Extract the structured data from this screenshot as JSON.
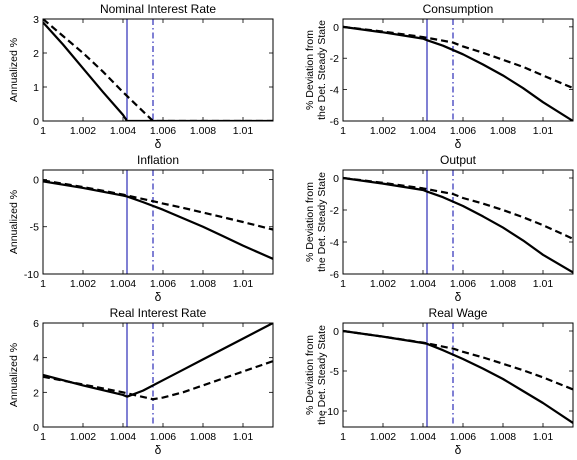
{
  "chart_data": [
    {
      "type": "line",
      "title": "Nominal Interest Rate",
      "xlabel": "δ",
      "ylabel": [
        "Annualized %"
      ],
      "xlim": [
        1,
        1.0115
      ],
      "ylim": [
        0,
        3
      ],
      "xticks": [
        "1",
        "1.002",
        "1.004",
        "1.006",
        "1.008",
        "1.01"
      ],
      "yticks": [
        "0",
        "1",
        "2",
        "3"
      ],
      "vlines": [
        {
          "x": 1.0042,
          "style": "solid",
          "color": "#0000aa"
        },
        {
          "x": 1.0055,
          "style": "dashdot",
          "color": "#0000aa"
        }
      ],
      "series": [
        {
          "style": "solid",
          "x": [
            1,
            1.001,
            1.002,
            1.003,
            1.004,
            1.0042,
            1.005,
            1.006,
            1.008,
            1.0115
          ],
          "y": [
            2.9,
            2.25,
            1.55,
            0.85,
            0.18,
            0,
            0,
            0,
            0,
            0
          ]
        },
        {
          "style": "dashed",
          "x": [
            1,
            1.001,
            1.002,
            1.003,
            1.004,
            1.0055,
            1.006,
            1.008,
            1.0115
          ],
          "y": [
            3.0,
            2.5,
            2.0,
            1.45,
            0.85,
            0,
            0,
            0,
            0
          ]
        }
      ]
    },
    {
      "type": "line",
      "title": "Consumption",
      "xlabel": "δ",
      "ylabel": [
        "% Deviation from",
        "the Det. Steady State"
      ],
      "xlim": [
        1,
        1.0115
      ],
      "ylim": [
        -6,
        0.5
      ],
      "xticks": [
        "1",
        "1.002",
        "1.004",
        "1.006",
        "1.008",
        "1.01"
      ],
      "yticks": [
        "0",
        "-2",
        "-4",
        "-6"
      ],
      "vlines": [
        {
          "x": 1.0042,
          "style": "solid",
          "color": "#0000aa"
        },
        {
          "x": 1.0055,
          "style": "dashdot",
          "color": "#0000aa"
        }
      ],
      "series": [
        {
          "style": "solid",
          "x": [
            1,
            1.002,
            1.004,
            1.0042,
            1.005,
            1.006,
            1.007,
            1.008,
            1.009,
            1.01,
            1.0115
          ],
          "y": [
            0,
            -0.35,
            -0.75,
            -0.85,
            -1.2,
            -1.75,
            -2.4,
            -3.1,
            -3.9,
            -4.8,
            -6.0
          ]
        },
        {
          "style": "dashed",
          "x": [
            1,
            1.002,
            1.004,
            1.0055,
            1.006,
            1.007,
            1.008,
            1.009,
            1.01,
            1.0115
          ],
          "y": [
            0,
            -0.3,
            -0.65,
            -1.0,
            -1.25,
            -1.65,
            -2.1,
            -2.55,
            -3.1,
            -3.9
          ]
        }
      ]
    },
    {
      "type": "line",
      "title": "Inflation",
      "xlabel": "δ",
      "ylabel": [
        "Annualized %"
      ],
      "xlim": [
        1,
        1.0115
      ],
      "ylim": [
        -10,
        1
      ],
      "xticks": [
        "1",
        "1.002",
        "1.004",
        "1.006",
        "1.008",
        "1.01"
      ],
      "yticks": [
        "0",
        "-5",
        "-10"
      ],
      "vlines": [
        {
          "x": 1.0042,
          "style": "solid",
          "color": "#0000aa"
        },
        {
          "x": 1.0055,
          "style": "dashdot",
          "color": "#0000aa"
        }
      ],
      "series": [
        {
          "style": "solid",
          "x": [
            1,
            1.002,
            1.004,
            1.0042,
            1.005,
            1.006,
            1.007,
            1.008,
            1.009,
            1.01,
            1.0115
          ],
          "y": [
            -0.2,
            -0.9,
            -1.7,
            -1.8,
            -2.4,
            -3.2,
            -4.1,
            -5.0,
            -6.0,
            -7.0,
            -8.4
          ]
        },
        {
          "style": "dashed",
          "x": [
            1,
            1.002,
            1.004,
            1.0055,
            1.006,
            1.007,
            1.008,
            1.009,
            1.01,
            1.0115
          ],
          "y": [
            -0.1,
            -0.8,
            -1.6,
            -2.3,
            -2.55,
            -3.0,
            -3.5,
            -4.0,
            -4.5,
            -5.3
          ]
        }
      ]
    },
    {
      "type": "line",
      "title": "Output",
      "xlabel": "δ",
      "ylabel": [
        "% Deviation from",
        "the Det. Steady State"
      ],
      "xlim": [
        1,
        1.0115
      ],
      "ylim": [
        -6,
        0.5
      ],
      "xticks": [
        "1",
        "1.002",
        "1.004",
        "1.006",
        "1.008",
        "1.01"
      ],
      "yticks": [
        "0",
        "-2",
        "-4",
        "-6"
      ],
      "vlines": [
        {
          "x": 1.0042,
          "style": "solid",
          "color": "#0000aa"
        },
        {
          "x": 1.0055,
          "style": "dashdot",
          "color": "#0000aa"
        }
      ],
      "series": [
        {
          "style": "solid",
          "x": [
            1,
            1.002,
            1.004,
            1.0042,
            1.005,
            1.006,
            1.007,
            1.008,
            1.009,
            1.01,
            1.0115
          ],
          "y": [
            0,
            -0.35,
            -0.75,
            -0.85,
            -1.2,
            -1.75,
            -2.4,
            -3.1,
            -3.9,
            -4.8,
            -5.9
          ]
        },
        {
          "style": "dashed",
          "x": [
            1,
            1.002,
            1.004,
            1.0055,
            1.006,
            1.007,
            1.008,
            1.009,
            1.01,
            1.0115
          ],
          "y": [
            0,
            -0.3,
            -0.65,
            -1.0,
            -1.25,
            -1.6,
            -2.0,
            -2.45,
            -2.95,
            -3.8
          ]
        }
      ]
    },
    {
      "type": "line",
      "title": "Real Interest Rate",
      "xlabel": "δ",
      "ylabel": [
        "Annualized %"
      ],
      "xlim": [
        1,
        1.0115
      ],
      "ylim": [
        0,
        6
      ],
      "xticks": [
        "1",
        "1.002",
        "1.004",
        "1.006",
        "1.008",
        "1.01"
      ],
      "yticks": [
        "0",
        "2",
        "4",
        "6"
      ],
      "vlines": [
        {
          "x": 1.0042,
          "style": "solid",
          "color": "#0000aa"
        },
        {
          "x": 1.0055,
          "style": "dashdot",
          "color": "#0000aa"
        }
      ],
      "series": [
        {
          "style": "solid",
          "x": [
            1,
            1.002,
            1.004,
            1.0042,
            1.005,
            1.006,
            1.007,
            1.008,
            1.009,
            1.01,
            1.0115
          ],
          "y": [
            3.0,
            2.4,
            1.85,
            1.75,
            2.1,
            2.7,
            3.3,
            3.9,
            4.5,
            5.1,
            6.0
          ]
        },
        {
          "style": "dashed",
          "x": [
            1,
            1.002,
            1.004,
            1.0055,
            1.006,
            1.007,
            1.008,
            1.009,
            1.01,
            1.0115
          ],
          "y": [
            2.9,
            2.45,
            2.0,
            1.6,
            1.7,
            2.0,
            2.4,
            2.8,
            3.2,
            3.8
          ]
        }
      ]
    },
    {
      "type": "line",
      "title": "Real Wage",
      "xlabel": "δ",
      "ylabel": [
        "% Deviation from",
        "the Det. Steady State"
      ],
      "xlim": [
        1,
        1.0115
      ],
      "ylim": [
        -12,
        1
      ],
      "xticks": [
        "1",
        "1.002",
        "1.004",
        "1.006",
        "1.008",
        "1.01"
      ],
      "yticks": [
        "0",
        "-5",
        "-10"
      ],
      "vlines": [
        {
          "x": 1.0042,
          "style": "solid",
          "color": "#0000aa"
        },
        {
          "x": 1.0055,
          "style": "dashdot",
          "color": "#0000aa"
        }
      ],
      "series": [
        {
          "style": "solid",
          "x": [
            1,
            1.002,
            1.004,
            1.0042,
            1.005,
            1.006,
            1.007,
            1.008,
            1.009,
            1.01,
            1.0115
          ],
          "y": [
            0,
            -0.7,
            -1.5,
            -1.6,
            -2.4,
            -3.5,
            -4.7,
            -6.0,
            -7.5,
            -9.0,
            -11.5
          ]
        },
        {
          "style": "dashed",
          "x": [
            1,
            1.002,
            1.004,
            1.0055,
            1.006,
            1.007,
            1.008,
            1.009,
            1.01,
            1.0115
          ],
          "y": [
            0,
            -0.7,
            -1.45,
            -2.2,
            -2.6,
            -3.3,
            -4.1,
            -4.9,
            -5.8,
            -7.3
          ]
        }
      ]
    }
  ]
}
